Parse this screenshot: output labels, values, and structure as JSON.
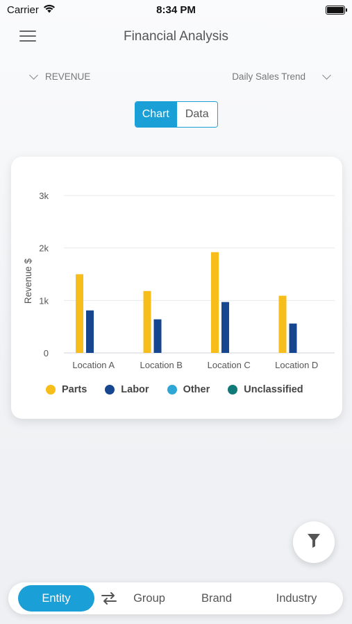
{
  "status_bar": {
    "carrier": "Carrier",
    "time": "8:34 PM"
  },
  "header": {
    "title": "Financial Analysis",
    "menu_icon": "hamburger-icon"
  },
  "selectors": {
    "metric": "REVENUE",
    "trend": "Daily Sales Trend"
  },
  "view_toggle": {
    "chart_label": "Chart",
    "data_label": "Data",
    "selected": "Chart"
  },
  "chart_data": {
    "type": "bar",
    "ylabel": "Revenue $",
    "ylim": [
      0,
      3000
    ],
    "ytick_labels": [
      "0",
      "1k",
      "2k",
      "3k"
    ],
    "yticks": [
      0,
      1000,
      2000,
      3000
    ],
    "categories": [
      "Location A",
      "Location B",
      "Location C",
      "Location D"
    ],
    "series": [
      {
        "name": "Parts",
        "color": "#f7bd1b",
        "values": [
          1500,
          1180,
          1920,
          1090
        ]
      },
      {
        "name": "Labor",
        "color": "#16468f",
        "values": [
          810,
          640,
          970,
          560
        ]
      },
      {
        "name": "Other",
        "color": "#2ea7d6",
        "values": [
          0,
          0,
          0,
          0
        ]
      },
      {
        "name": "Unclassified",
        "color": "#0f7a78",
        "values": [
          0,
          0,
          0,
          0
        ]
      }
    ],
    "grid": true
  },
  "legend": [
    {
      "label": "Parts",
      "color": "#f7bd1b"
    },
    {
      "label": "Labor",
      "color": "#16468f"
    },
    {
      "label": "Other",
      "color": "#2ea7d6"
    },
    {
      "label": "Unclassified",
      "color": "#0f7a78"
    }
  ],
  "bottom_nav": {
    "entity": "Entity",
    "group": "Group",
    "brand": "Brand",
    "industry": "Industry",
    "selected": "Entity"
  },
  "colors": {
    "accent": "#1a9fd6"
  }
}
